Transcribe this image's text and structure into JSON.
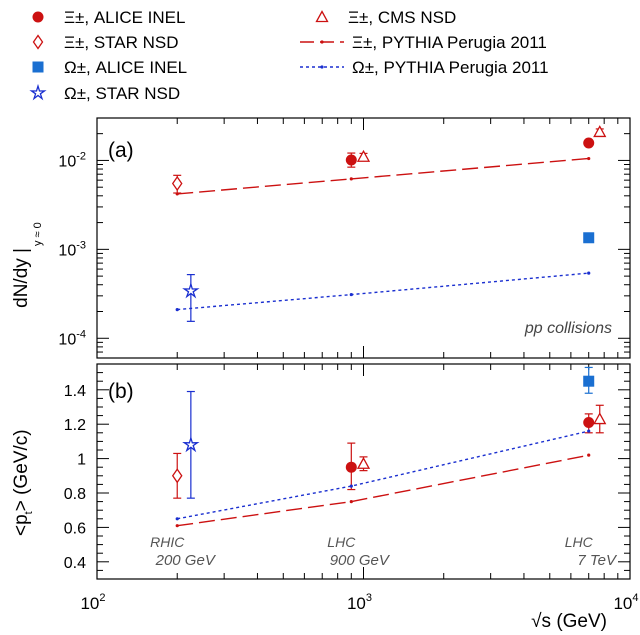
{
  "legend": {
    "items": [
      {
        "label": "Ξ±, ALICE INEL",
        "marker": "filled-circle",
        "color": "#cc1111"
      },
      {
        "label": "Ξ±, STAR NSD",
        "marker": "open-diamond",
        "color": "#cc1111"
      },
      {
        "label": "Ω±, ALICE INEL",
        "marker": "filled-square",
        "color": "#1a6fd1"
      },
      {
        "label": "Ω±, STAR NSD",
        "marker": "open-star",
        "color": "#1a2fd0"
      },
      {
        "label": "Ξ±, CMS NSD",
        "marker": "open-triangle",
        "color": "#cc1111"
      },
      {
        "label": "Ξ±, PYTHIA Perugia 2011",
        "marker": "dashed-line",
        "color": "#cc1111"
      },
      {
        "label": "Ω±, PYTHIA Perugia 2011",
        "marker": "dotted-line",
        "color": "#1a2fd0"
      }
    ]
  },
  "chart_data": [
    {
      "type": "scatter",
      "panel_label": "(a)",
      "ylabel": "dN/dy |",
      "ylabel_sub": "y ≈ 0",
      "yscale": "log",
      "xscale": "log",
      "xlim": [
        100,
        10000
      ],
      "ylim": [
        6e-05,
        0.03
      ],
      "ytick_labels": [
        "10-4",
        "10-3",
        "10-2"
      ],
      "annotation": "pp collisions",
      "series": [
        {
          "name": "Ξ±, ALICE INEL",
          "marker": "filled-circle",
          "color": "#cc1111",
          "x": [
            900,
            7000
          ],
          "y": [
            0.0101,
            0.0157
          ],
          "yerr_low": [
            0.0084,
            0.0153
          ],
          "yerr_high": [
            0.0121,
            0.0162
          ]
        },
        {
          "name": "Ξ±, STAR NSD",
          "marker": "open-diamond",
          "color": "#cc1111",
          "x": [
            200
          ],
          "y": [
            0.0055
          ],
          "yerr_low": [
            0.0043
          ],
          "yerr_high": [
            0.0068
          ]
        },
        {
          "name": "Ξ±, CMS NSD",
          "marker": "open-triangle",
          "color": "#cc1111",
          "x": [
            1000,
            7700
          ],
          "y": [
            0.011,
            0.0209
          ],
          "yerr_low": [
            0.01,
            0.019
          ],
          "yerr_high": [
            0.012,
            0.0226
          ]
        },
        {
          "name": "Ω±, ALICE INEL",
          "marker": "filled-square",
          "color": "#1a6fd1",
          "x": [
            7000
          ],
          "y": [
            0.00135
          ],
          "yerr_low": [
            0.0013
          ],
          "yerr_high": [
            0.0014
          ]
        },
        {
          "name": "Ω±, STAR NSD",
          "marker": "open-star",
          "color": "#1a2fd0",
          "x": [
            225
          ],
          "y": [
            0.00034
          ],
          "yerr_low": [
            0.000155
          ],
          "yerr_high": [
            0.00052
          ]
        },
        {
          "name": "Ξ±, PYTHIA Perugia 2011",
          "line": "dashed",
          "color": "#cc1111",
          "x": [
            200,
            900,
            7000
          ],
          "y": [
            0.0042,
            0.0062,
            0.0105
          ]
        },
        {
          "name": "Ω±, PYTHIA Perugia 2011",
          "line": "dotted",
          "color": "#1a2fd0",
          "x": [
            200,
            900,
            7000
          ],
          "y": [
            0.00021,
            0.00031,
            0.00054
          ]
        }
      ]
    },
    {
      "type": "scatter",
      "panel_label": "(b)",
      "ylabel": "<p",
      "ylabel_sub": "t",
      "ylabel_tail": "> (GeV/c)",
      "xscale": "log",
      "xlim": [
        100,
        10000
      ],
      "ylim": [
        0.3,
        1.55
      ],
      "yticks": [
        0.4,
        0.6,
        0.8,
        1,
        1.2,
        1.4
      ],
      "ytick_labels": [
        "0.4",
        "0.6",
        "0.8",
        "1",
        "1.2",
        "1.4"
      ],
      "xtick_labels": [
        "10",
        "10",
        "10"
      ],
      "xtick_exponents": [
        "2",
        "3",
        "4"
      ],
      "xlabel": "√s (GeV)",
      "energy_labels": [
        {
          "x": 200,
          "line1": "RHIC",
          "line2": "200 GeV"
        },
        {
          "x": 900,
          "line1": "LHC",
          "line2": "900 GeV"
        },
        {
          "x": 7000,
          "line1": "LHC",
          "line2": "7 TeV"
        }
      ],
      "series": [
        {
          "name": "Ξ±, ALICE INEL",
          "marker": "filled-circle",
          "color": "#cc1111",
          "x": [
            900,
            7000
          ],
          "y": [
            0.95,
            1.21
          ],
          "yerr_low": [
            0.82,
            1.15
          ],
          "yerr_high": [
            1.09,
            1.26
          ]
        },
        {
          "name": "Ξ±, STAR NSD",
          "marker": "open-diamond",
          "color": "#cc1111",
          "x": [
            200
          ],
          "y": [
            0.9
          ],
          "yerr_low": [
            0.77
          ],
          "yerr_high": [
            1.03
          ]
        },
        {
          "name": "Ξ±, CMS NSD",
          "marker": "open-triangle",
          "color": "#cc1111",
          "x": [
            1000,
            7700
          ],
          "y": [
            0.97,
            1.23
          ],
          "yerr_low": [
            0.93,
            1.15
          ],
          "yerr_high": [
            1.01,
            1.31
          ]
        },
        {
          "name": "Ω±, ALICE INEL",
          "marker": "filled-square",
          "color": "#1a6fd1",
          "x": [
            7000
          ],
          "y": [
            1.45
          ],
          "yerr_low": [
            1.38
          ],
          "yerr_high": [
            1.53
          ]
        },
        {
          "name": "Ω±, STAR NSD",
          "marker": "open-star",
          "color": "#1a2fd0",
          "x": [
            225
          ],
          "y": [
            1.08
          ],
          "yerr_low": [
            0.77
          ],
          "yerr_high": [
            1.39
          ]
        },
        {
          "name": "Ξ±, PYTHIA Perugia 2011",
          "line": "dashed",
          "color": "#cc1111",
          "x": [
            200,
            900,
            7000
          ],
          "y": [
            0.61,
            0.75,
            1.02
          ]
        },
        {
          "name": "Ω±, PYTHIA Perugia 2011",
          "line": "dotted",
          "color": "#1a2fd0",
          "x": [
            200,
            900,
            7000
          ],
          "y": [
            0.65,
            0.84,
            1.16
          ]
        }
      ]
    }
  ]
}
